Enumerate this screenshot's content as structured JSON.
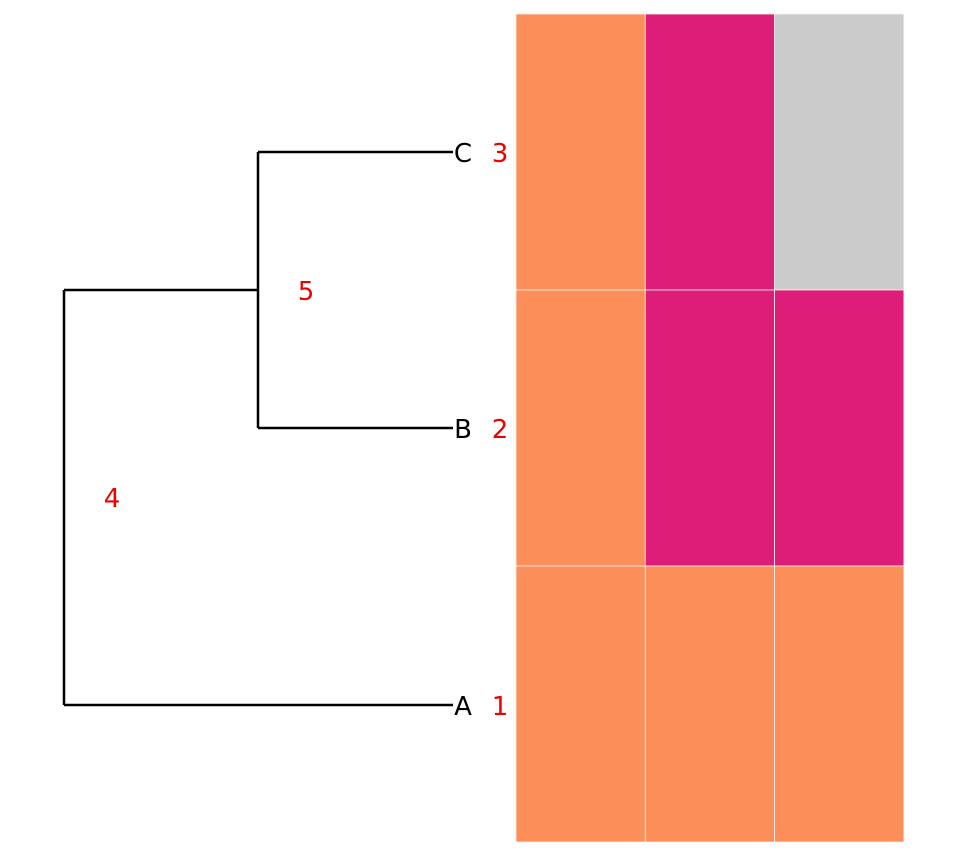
{
  "tree": {
    "tips": [
      {
        "label": "C",
        "node_id": "3"
      },
      {
        "label": "B",
        "node_id": "2"
      },
      {
        "label": "A",
        "node_id": "1"
      }
    ],
    "internal_nodes": [
      {
        "node_id": "5",
        "children": [
          "C",
          "B"
        ]
      },
      {
        "node_id": "4",
        "children": [
          "5",
          "A"
        ]
      }
    ],
    "node_label_color": "#ee0000",
    "branch_color": "#000000"
  },
  "heatmap": {
    "rows": [
      "C",
      "B",
      "A"
    ],
    "columns": 3,
    "cells": [
      [
        "#fc8e5a",
        "#dd1d77",
        "#cbcbcb"
      ],
      [
        "#fc8e5a",
        "#dd1d77",
        "#dd1d77"
      ],
      [
        "#fc8e5a",
        "#fc8e5a",
        "#fc8e5a"
      ]
    ]
  }
}
